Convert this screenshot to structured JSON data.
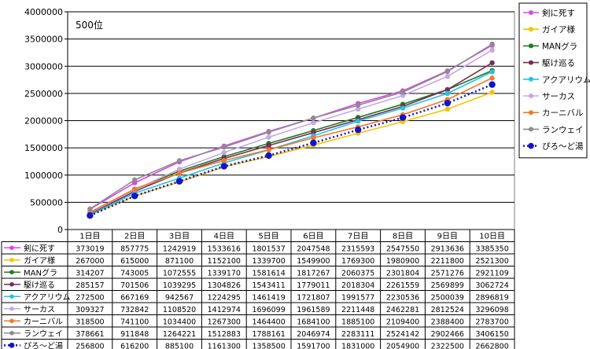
{
  "chart_data": {
    "type": "line",
    "title": "500位",
    "xlabel": "",
    "ylabel": "",
    "ylim": [
      0,
      4000000
    ],
    "yticks": [
      0,
      500000,
      1000000,
      1500000,
      2000000,
      2500000,
      3000000,
      3500000,
      4000000
    ],
    "grid": true,
    "legend_position": "right",
    "data_table": true,
    "categories": [
      "1日目",
      "2日目",
      "3日目",
      "4日目",
      "5日目",
      "6日目",
      "7日目",
      "8日目",
      "9日目",
      "10日目"
    ],
    "series": [
      {
        "name": "剣に死す",
        "color": "#d946ef",
        "dashed": false,
        "values": [
          373019,
          857775,
          1242919,
          1533616,
          1801537,
          2047548,
          2315593,
          2547550,
          2913636,
          3385350
        ]
      },
      {
        "name": "ガイア様",
        "color": "#f5c400",
        "dashed": false,
        "values": [
          267000,
          615000,
          871100,
          1152100,
          1339700,
          1549900,
          1769300,
          1980900,
          2211800,
          2521300
        ]
      },
      {
        "name": "MANグラ",
        "color": "#1e7a1e",
        "dashed": false,
        "values": [
          314207,
          743005,
          1072555,
          1339170,
          1581614,
          1817267,
          2060375,
          2301804,
          2571276,
          2921109
        ]
      },
      {
        "name": "駆け巡る",
        "color": "#7a2a5a",
        "dashed": false,
        "values": [
          285157,
          701506,
          1039295,
          1304826,
          1543411,
          1779011,
          2018304,
          2261559,
          2569899,
          3062724
        ]
      },
      {
        "name": "アクアリウム",
        "color": "#22c3e6",
        "dashed": false,
        "values": [
          272500,
          667169,
          942567,
          1224295,
          1461419,
          1721807,
          1991577,
          2230536,
          2500039,
          2896819
        ]
      },
      {
        "name": "サーカス",
        "color": "#c8a6e8",
        "dashed": false,
        "values": [
          309327,
          732842,
          1108520,
          1412974,
          1696099,
          1961589,
          2211448,
          2462281,
          2812524,
          3296098
        ]
      },
      {
        "name": "カーニバル",
        "color": "#f07a2a",
        "dashed": false,
        "values": [
          318500,
          741100,
          1034400,
          1267300,
          1464400,
          1684100,
          1885100,
          2109400,
          2388400,
          2783700
        ]
      },
      {
        "name": "ランウェイ",
        "color": "#8c8c8c",
        "dashed": false,
        "values": [
          378661,
          911848,
          1264221,
          1512883,
          1788161,
          2046974,
          2283111,
          2524142,
          2902466,
          3406150
        ]
      },
      {
        "name": "ぴろ～ど湯",
        "color": "#1414c8",
        "dashed": true,
        "values": [
          256800,
          616200,
          885100,
          1161300,
          1358500,
          1591700,
          1831000,
          2054900,
          2322500,
          2662800
        ]
      }
    ]
  }
}
